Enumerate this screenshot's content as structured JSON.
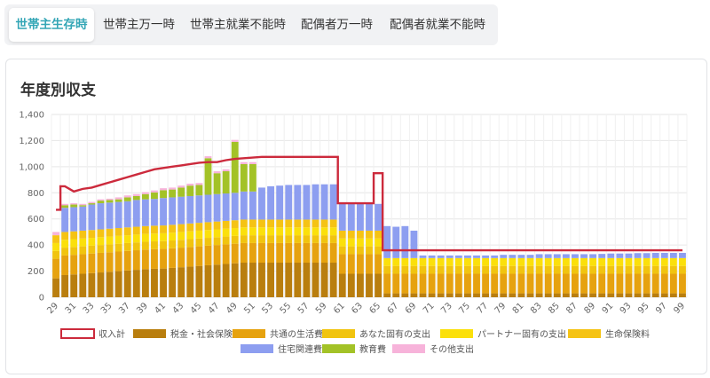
{
  "tabs": [
    "世帯主生存時",
    "世帯主万一時",
    "世帯主就業不能時",
    "配偶者万一時",
    "配偶者就業不能時"
  ],
  "active_tab": 0,
  "card": {
    "title": "年度別収支"
  },
  "colors": {
    "tax": "#b97e0e",
    "common": "#e6a20f",
    "you": "#f1c40f",
    "partner": "#fbe00b",
    "insurance": "#f5c314",
    "housing": "#8d9ef0",
    "education": "#a3c227",
    "other": "#f7b3da",
    "income": "#cc2a3c",
    "tab_active": "#34a6b6"
  },
  "chart_data": {
    "type": "bar",
    "stacked": true,
    "ylim": [
      0,
      1400
    ],
    "yticks": [
      "0",
      "200",
      "400",
      "600",
      "800",
      "1,000",
      "1,200",
      "1,400"
    ],
    "x": [
      29,
      30,
      31,
      32,
      33,
      34,
      35,
      36,
      37,
      38,
      39,
      40,
      41,
      42,
      43,
      44,
      45,
      46,
      47,
      48,
      49,
      50,
      51,
      52,
      53,
      54,
      55,
      56,
      57,
      58,
      59,
      60,
      61,
      62,
      63,
      64,
      65,
      66,
      67,
      68,
      69,
      70,
      71,
      72,
      73,
      74,
      75,
      76,
      77,
      78,
      79,
      80,
      81,
      82,
      83,
      84,
      85,
      86,
      87,
      88,
      89,
      90,
      91,
      92,
      93,
      94,
      95,
      96,
      97,
      98,
      99
    ],
    "xtick_labels": [
      "29",
      "31",
      "33",
      "35",
      "37",
      "39",
      "41",
      "43",
      "45",
      "47",
      "49",
      "51",
      "53",
      "55",
      "57",
      "59",
      "61",
      "63",
      "65",
      "67",
      "69",
      "71",
      "73",
      "75",
      "77",
      "79",
      "81",
      "83",
      "85",
      "87",
      "89",
      "91",
      "93",
      "95",
      "97",
      "99"
    ],
    "grid": true,
    "legend_position": "bottom",
    "line_series": {
      "name": "収入計",
      "values": [
        670,
        850,
        810,
        830,
        840,
        860,
        880,
        900,
        920,
        940,
        960,
        980,
        990,
        1000,
        1010,
        1020,
        1030,
        1035,
        1035,
        1050,
        1060,
        1065,
        1070,
        1075,
        1075,
        1075,
        1075,
        1075,
        1075,
        1075,
        1075,
        1075,
        720,
        720,
        720,
        720,
        950,
        360,
        360,
        360,
        360,
        360,
        360,
        360,
        360,
        360,
        360,
        360,
        360,
        360,
        360,
        360,
        360,
        360,
        360,
        360,
        360,
        360,
        360,
        360,
        360,
        360,
        360,
        360,
        360,
        360,
        360,
        360,
        360,
        360,
        360
      ]
    },
    "series": [
      {
        "name": "税金・社会保険料",
        "key": "tax",
        "values": [
          145,
          170,
          175,
          180,
          185,
          190,
          195,
          200,
          205,
          210,
          215,
          218,
          220,
          225,
          230,
          235,
          240,
          245,
          250,
          255,
          260,
          265,
          265,
          265,
          265,
          265,
          265,
          265,
          265,
          265,
          265,
          265,
          180,
          180,
          180,
          180,
          180,
          30,
          30,
          30,
          30,
          30,
          30,
          30,
          30,
          30,
          30,
          30,
          30,
          30,
          30,
          30,
          30,
          30,
          30,
          30,
          30,
          30,
          30,
          30,
          30,
          30,
          30,
          30,
          30,
          30,
          30,
          30,
          30,
          30,
          30
        ]
      },
      {
        "name": "共通の生活費",
        "key": "common",
        "values": [
          150,
          150,
          150,
          150,
          150,
          150,
          150,
          150,
          150,
          150,
          150,
          150,
          150,
          150,
          150,
          150,
          150,
          150,
          150,
          150,
          150,
          150,
          150,
          150,
          150,
          150,
          150,
          150,
          150,
          150,
          150,
          150,
          150,
          150,
          150,
          150,
          150,
          150,
          150,
          150,
          150,
          150,
          150,
          150,
          150,
          150,
          150,
          150,
          150,
          150,
          150,
          150,
          150,
          150,
          150,
          150,
          150,
          150,
          150,
          150,
          150,
          150,
          150,
          150,
          150,
          150,
          150,
          150,
          150,
          150,
          150
        ]
      },
      {
        "name": "あなた固有の支出",
        "key": "you",
        "values": [
          60,
          60,
          60,
          60,
          60,
          60,
          60,
          60,
          60,
          60,
          60,
          60,
          60,
          60,
          60,
          60,
          60,
          60,
          60,
          60,
          60,
          60,
          60,
          60,
          60,
          60,
          60,
          60,
          60,
          60,
          60,
          60,
          60,
          60,
          60,
          60,
          60,
          60,
          60,
          60,
          60,
          60,
          60,
          60,
          60,
          60,
          60,
          60,
          60,
          60,
          60,
          60,
          60,
          60,
          60,
          60,
          60,
          60,
          60,
          60,
          60,
          60,
          60,
          60,
          60,
          60,
          60,
          60,
          60,
          60,
          60
        ]
      },
      {
        "name": "パートナー固有の支出",
        "key": "partner",
        "values": [
          60,
          60,
          60,
          60,
          60,
          60,
          60,
          60,
          60,
          60,
          60,
          60,
          60,
          60,
          60,
          60,
          60,
          60,
          60,
          60,
          60,
          60,
          60,
          60,
          60,
          60,
          60,
          60,
          60,
          60,
          60,
          60,
          60,
          60,
          60,
          60,
          60,
          60,
          60,
          60,
          60,
          60,
          60,
          60,
          60,
          60,
          60,
          60,
          60,
          60,
          60,
          60,
          60,
          60,
          60,
          60,
          60,
          60,
          60,
          60,
          60,
          60,
          60,
          60,
          60,
          60,
          60,
          60,
          60,
          60,
          60
        ]
      },
      {
        "name": "生命保険料",
        "key": "insurance",
        "values": [
          60,
          60,
          60,
          60,
          60,
          60,
          60,
          60,
          60,
          60,
          60,
          60,
          60,
          60,
          60,
          60,
          60,
          60,
          60,
          60,
          60,
          60,
          60,
          60,
          60,
          60,
          60,
          60,
          60,
          60,
          60,
          60,
          60,
          60,
          60,
          60,
          60,
          0,
          0,
          0,
          0,
          0,
          0,
          0,
          0,
          0,
          0,
          0,
          0,
          0,
          0,
          0,
          0,
          0,
          0,
          0,
          0,
          0,
          0,
          0,
          0,
          0,
          0,
          0,
          0,
          0,
          0,
          0,
          0,
          0,
          0
        ]
      },
      {
        "name": "住宅関連費",
        "key": "housing",
        "values": [
          0,
          185,
          185,
          185,
          195,
          200,
          200,
          200,
          200,
          205,
          205,
          205,
          210,
          210,
          210,
          210,
          210,
          210,
          210,
          210,
          210,
          215,
          215,
          245,
          255,
          260,
          265,
          265,
          265,
          270,
          270,
          270,
          210,
          210,
          210,
          205,
          205,
          245,
          240,
          245,
          210,
          20,
          20,
          20,
          20,
          20,
          20,
          20,
          20,
          20,
          25,
          25,
          25,
          25,
          30,
          30,
          30,
          30,
          30,
          30,
          30,
          32,
          35,
          35,
          35,
          38,
          38,
          40,
          40,
          40,
          40
        ]
      },
      {
        "name": "教育費",
        "key": "education",
        "values": [
          0,
          20,
          20,
          10,
          10,
          20,
          20,
          20,
          30,
          30,
          40,
          50,
          60,
          60,
          70,
          80,
          80,
          280,
          160,
          170,
          390,
          210,
          210,
          0,
          0,
          0,
          0,
          0,
          0,
          0,
          0,
          0,
          0,
          0,
          0,
          0,
          0,
          0,
          0,
          0,
          0,
          0,
          0,
          0,
          0,
          0,
          0,
          0,
          0,
          0,
          0,
          0,
          0,
          0,
          0,
          0,
          0,
          0,
          0,
          0,
          0,
          0,
          0,
          0,
          0,
          0,
          0,
          0,
          0,
          0,
          0
        ]
      },
      {
        "name": "その他支出",
        "key": "other",
        "values": [
          25,
          10,
          10,
          10,
          10,
          10,
          10,
          15,
          15,
          15,
          15,
          15,
          15,
          15,
          15,
          15,
          15,
          15,
          15,
          15,
          15,
          15,
          15,
          0,
          0,
          0,
          0,
          0,
          0,
          0,
          0,
          0,
          0,
          0,
          0,
          0,
          0,
          0,
          0,
          0,
          0,
          0,
          0,
          0,
          0,
          0,
          0,
          0,
          0,
          0,
          0,
          0,
          0,
          0,
          0,
          0,
          0,
          0,
          0,
          0,
          0,
          0,
          0,
          0,
          0,
          0,
          0,
          0,
          0,
          0,
          0
        ]
      }
    ]
  }
}
